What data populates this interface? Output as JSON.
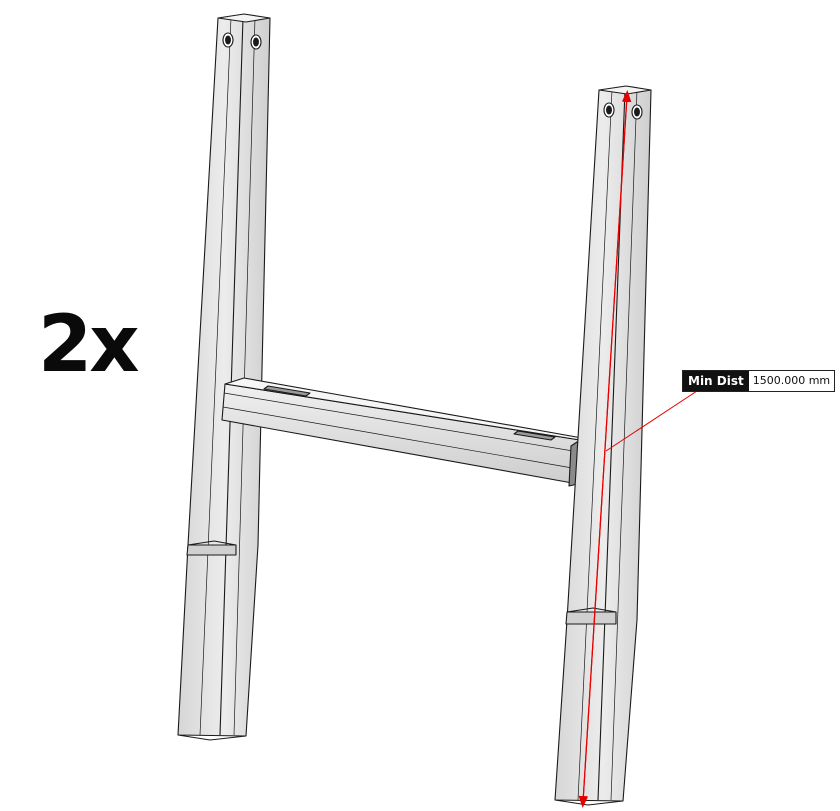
{
  "drawing": {
    "quantity_label": "2x",
    "measurement": {
      "label": "Min Dist",
      "value": "1500.000 mm"
    },
    "colors": {
      "tube_fill": "#e2e2e2",
      "tube_shade": "#c9c9c9",
      "edge": "#1a1a1a",
      "measure_line": "#e60000"
    }
  }
}
